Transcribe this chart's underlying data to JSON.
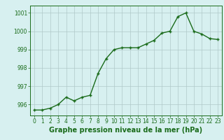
{
  "x": [
    0,
    1,
    2,
    3,
    4,
    5,
    6,
    7,
    8,
    9,
    10,
    11,
    12,
    13,
    14,
    15,
    16,
    17,
    18,
    19,
    20,
    21,
    22,
    23
  ],
  "y": [
    995.7,
    995.7,
    995.8,
    996.0,
    996.4,
    996.2,
    996.4,
    996.5,
    997.7,
    998.5,
    999.0,
    999.1,
    999.1,
    999.1,
    999.3,
    999.5,
    999.9,
    1000.0,
    1000.8,
    1001.0,
    1000.0,
    999.85,
    999.6,
    999.55
  ],
  "line_color": "#1a6b1a",
  "marker": "+",
  "marker_size": 3,
  "line_width": 1.0,
  "bg_color": "#d7f0f0",
  "grid_color": "#b0c8c8",
  "xlabel": "Graphe pression niveau de la mer (hPa)",
  "xlabel_fontsize": 7.0,
  "xlabel_color": "#1a6b1a",
  "yticks": [
    996,
    997,
    998,
    999,
    1000,
    1001
  ],
  "ylim": [
    995.4,
    1001.4
  ],
  "xlim": [
    -0.5,
    23.5
  ],
  "xticks": [
    0,
    1,
    2,
    3,
    4,
    5,
    6,
    7,
    8,
    9,
    10,
    11,
    12,
    13,
    14,
    15,
    16,
    17,
    18,
    19,
    20,
    21,
    22,
    23
  ],
  "tick_fontsize": 5.5
}
